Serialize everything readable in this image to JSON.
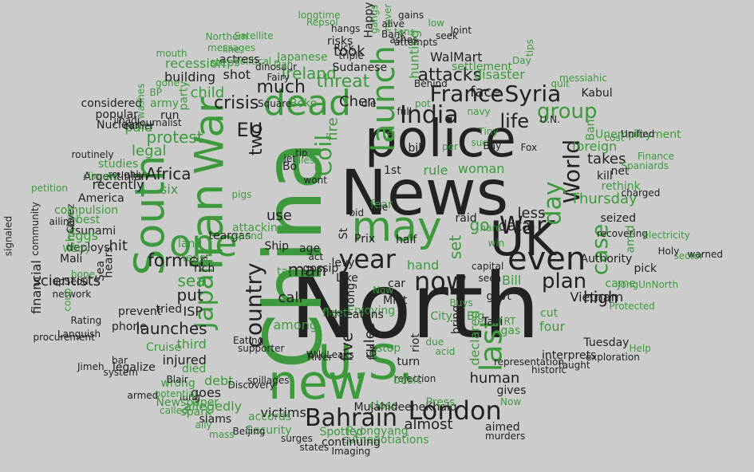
{
  "palette": {
    "background": "#cccccc",
    "dark": "#222222",
    "green": "#3c9a3c"
  },
  "words": [
    {
      "text": "North",
      "color": "dark"
    },
    {
      "text": "China",
      "color": "green"
    },
    {
      "text": "News",
      "color": "dark"
    },
    {
      "text": "police",
      "color": "dark"
    },
    {
      "text": "U.S.",
      "color": "green"
    },
    {
      "text": "new",
      "color": "green"
    },
    {
      "text": "UK",
      "color": "dark"
    },
    {
      "text": "Iran",
      "color": "green"
    },
    {
      "text": "War",
      "color": "green"
    },
    {
      "text": "South",
      "color": "green"
    },
    {
      "text": "one",
      "color": "green"
    },
    {
      "text": "may",
      "color": "green"
    },
    {
      "text": "dead",
      "color": "green"
    },
    {
      "text": "even",
      "color": "dark"
    },
    {
      "text": "London",
      "color": "dark"
    },
    {
      "text": "Bahrain",
      "color": "dark"
    },
    {
      "text": "now",
      "color": "dark"
    },
    {
      "text": "year",
      "color": "dark"
    },
    {
      "text": "launch",
      "color": "green"
    },
    {
      "text": "last",
      "color": "green"
    },
    {
      "text": "India",
      "color": "dark"
    },
    {
      "text": "France",
      "color": "dark"
    },
    {
      "text": "Syria",
      "color": "dark"
    },
    {
      "text": "World",
      "color": "dark"
    },
    {
      "text": "War",
      "color": "dark"
    },
    {
      "text": "Japan",
      "color": "green"
    },
    {
      "text": "country",
      "color": "dark"
    },
    {
      "text": "case",
      "color": "green"
    },
    {
      "text": "EU",
      "color": "dark"
    },
    {
      "text": "day",
      "color": "green"
    },
    {
      "text": "plan",
      "color": "dark"
    },
    {
      "text": "man",
      "color": "dark"
    },
    {
      "text": "Coil",
      "color": "green"
    },
    {
      "text": "group",
      "color": "green"
    },
    {
      "text": "life",
      "color": "dark"
    },
    {
      "text": "attacks",
      "color": "dark"
    },
    {
      "text": "threat",
      "color": "green"
    },
    {
      "text": "much",
      "color": "dark"
    },
    {
      "text": "two",
      "color": "dark"
    },
    {
      "text": "crisis",
      "color": "dark"
    },
    {
      "text": "protest",
      "color": "green"
    },
    {
      "text": "Africa",
      "color": "dark"
    },
    {
      "text": "legal",
      "color": "green"
    },
    {
      "text": "former",
      "color": "dark"
    },
    {
      "text": "sea",
      "color": "green"
    },
    {
      "text": "put",
      "color": "dark"
    },
    {
      "text": "launches",
      "color": "dark"
    },
    {
      "text": "high",
      "color": "dark"
    },
    {
      "text": "Thursday",
      "color": "green"
    },
    {
      "text": "less",
      "color": "dark"
    },
    {
      "text": "data",
      "color": "dark"
    },
    {
      "text": "go",
      "color": "green"
    },
    {
      "text": "set",
      "color": "green"
    },
    {
      "text": "takes",
      "color": "dark"
    },
    {
      "text": "five",
      "color": "dark"
    },
    {
      "text": "rules",
      "color": "dark"
    },
    {
      "text": "almost",
      "color": "dark"
    },
    {
      "text": "human",
      "color": "dark"
    },
    {
      "text": "scientists",
      "color": "dark"
    },
    {
      "text": "financial",
      "color": "dark"
    },
    {
      "text": "hit",
      "color": "dark"
    },
    {
      "text": "call",
      "color": "dark"
    },
    {
      "text": "use",
      "color": "dark"
    },
    {
      "text": "victims",
      "color": "dark"
    },
    {
      "text": "Ireland",
      "color": "green"
    },
    {
      "text": "took",
      "color": "dark"
    },
    {
      "text": "WalMart",
      "color": "dark"
    },
    {
      "text": "disaster",
      "color": "green"
    },
    {
      "text": "face",
      "color": "dark"
    },
    {
      "text": "Kabul",
      "color": "dark"
    },
    {
      "text": "Chen",
      "color": "dark"
    },
    {
      "text": "building",
      "color": "dark"
    },
    {
      "text": "recession",
      "color": "green"
    },
    {
      "text": "child",
      "color": "green"
    },
    {
      "text": "fire",
      "color": "green"
    },
    {
      "text": "hunting",
      "color": "green"
    },
    {
      "text": "woman",
      "color": "green"
    },
    {
      "text": "rule",
      "color": "green"
    },
    {
      "text": "1st",
      "color": "dark"
    },
    {
      "text": "recently",
      "color": "dark"
    },
    {
      "text": "six",
      "color": "green"
    },
    {
      "text": "ISP",
      "color": "dark"
    },
    {
      "text": "third",
      "color": "green"
    },
    {
      "text": "injured",
      "color": "dark"
    },
    {
      "text": "died",
      "color": "green"
    },
    {
      "text": "debt",
      "color": "green"
    },
    {
      "text": "goes",
      "color": "dark"
    },
    {
      "text": "allegedly",
      "color": "green"
    },
    {
      "text": "among",
      "color": "green"
    },
    {
      "text": "hand",
      "color": "green"
    },
    {
      "text": "Bill",
      "color": "green"
    },
    {
      "text": "declared",
      "color": "green"
    },
    {
      "text": "bring",
      "color": "dark"
    },
    {
      "text": "turn",
      "color": "dark"
    },
    {
      "text": "close",
      "color": "green"
    },
    {
      "text": "Vietnam",
      "color": "dark"
    },
    {
      "text": "seized",
      "color": "dark"
    },
    {
      "text": "Authority",
      "color": "dark"
    },
    {
      "text": "four",
      "color": "green"
    },
    {
      "text": "cut",
      "color": "green"
    },
    {
      "text": "gas",
      "color": "green"
    },
    {
      "text": "Cruise",
      "color": "green"
    },
    {
      "text": "rethink",
      "color": "green"
    },
    {
      "text": "Unemployment",
      "color": "green"
    },
    {
      "text": "amid",
      "color": "green"
    },
    {
      "text": "foreign",
      "color": "green"
    },
    {
      "text": "net",
      "color": "dark"
    },
    {
      "text": "came",
      "color": "green"
    },
    {
      "text": "Ship",
      "color": "dark"
    },
    {
      "text": "tax",
      "color": "green"
    },
    {
      "text": "far",
      "color": "dark"
    },
    {
      "text": "riot",
      "color": "dark"
    },
    {
      "text": "long",
      "color": "dark"
    },
    {
      "text": "car",
      "color": "dark"
    },
    {
      "text": "Prix",
      "color": "dark"
    },
    {
      "text": "St",
      "color": "dark"
    },
    {
      "text": "run",
      "color": "dark"
    },
    {
      "text": "army",
      "color": "green"
    },
    {
      "text": "paid",
      "color": "green"
    },
    {
      "text": "party",
      "color": "green"
    },
    {
      "text": "shot",
      "color": "dark"
    },
    {
      "text": "Japanese",
      "color": "green"
    },
    {
      "text": "Sudanese",
      "color": "dark"
    },
    {
      "text": "risks",
      "color": "dark"
    },
    {
      "text": "Bank",
      "color": "dark"
    },
    {
      "text": "attempts",
      "color": "dark"
    },
    {
      "text": "seek",
      "color": "dark"
    },
    {
      "text": "Joint",
      "color": "dark"
    },
    {
      "text": "settlement",
      "color": "green"
    },
    {
      "text": "ashes",
      "color": "dark"
    },
    {
      "text": "gangs",
      "color": "green"
    },
    {
      "text": "never",
      "color": "green"
    },
    {
      "text": "Northern",
      "color": "green"
    },
    {
      "text": "messages",
      "color": "green"
    },
    {
      "text": "Political",
      "color": "green"
    },
    {
      "text": "actress",
      "color": "dark"
    },
    {
      "text": "steps",
      "color": "green"
    },
    {
      "text": "Nuclear",
      "color": "dark"
    },
    {
      "text": "considered",
      "color": "dark"
    },
    {
      "text": "popular",
      "color": "dark"
    },
    {
      "text": "studies",
      "color": "green"
    },
    {
      "text": "America",
      "color": "dark"
    },
    {
      "text": "best",
      "color": "green"
    },
    {
      "text": "tsunami",
      "color": "dark"
    },
    {
      "text": "charge",
      "color": "green"
    },
    {
      "text": "eggs",
      "color": "green"
    },
    {
      "text": "deploys",
      "color": "dark"
    },
    {
      "text": "Mali",
      "color": "dark"
    },
    {
      "text": "hears",
      "color": "dark"
    },
    {
      "text": "Sea",
      "color": "dark"
    },
    {
      "text": "rich",
      "color": "dark"
    },
    {
      "text": "land",
      "color": "green"
    },
    {
      "text": "least",
      "color": "green"
    },
    {
      "text": "tried",
      "color": "dark"
    },
    {
      "text": "prevent",
      "color": "dark"
    },
    {
      "text": "phone",
      "color": "dark"
    },
    {
      "text": "legalize",
      "color": "dark"
    },
    {
      "text": "wrong",
      "color": "green"
    },
    {
      "text": "Newspaper",
      "color": "green"
    },
    {
      "text": "slams",
      "color": "dark"
    },
    {
      "text": "accords",
      "color": "green"
    },
    {
      "text": "Security",
      "color": "green"
    },
    {
      "text": "Spotted",
      "color": "green"
    },
    {
      "text": "Pyongyang",
      "color": "green"
    },
    {
      "text": "cutnegotiations",
      "color": "green"
    },
    {
      "text": "continuing",
      "color": "dark"
    },
    {
      "text": "Imaging",
      "color": "dark"
    },
    {
      "text": "states",
      "color": "dark"
    },
    {
      "text": "surges",
      "color": "dark"
    },
    {
      "text": "Beijing",
      "color": "dark"
    },
    {
      "text": "MujahideeneKhalq",
      "color": "dark"
    },
    {
      "text": "Press",
      "color": "green"
    },
    {
      "text": "aimed",
      "color": "dark"
    },
    {
      "text": "murders",
      "color": "dark"
    },
    {
      "text": "gives",
      "color": "dark"
    },
    {
      "text": "historic",
      "color": "dark"
    },
    {
      "text": "representation",
      "color": "dark"
    },
    {
      "text": "interprets",
      "color": "dark"
    },
    {
      "text": "taught",
      "color": "dark"
    },
    {
      "text": "Tuesday",
      "color": "dark"
    },
    {
      "text": "Help",
      "color": "green"
    },
    {
      "text": "exploration",
      "color": "dark"
    },
    {
      "text": "Protected",
      "color": "green"
    },
    {
      "text": "JongUnNorth",
      "color": "green"
    },
    {
      "text": "pick",
      "color": "dark"
    },
    {
      "text": "Holy",
      "color": "dark"
    },
    {
      "text": "sector",
      "color": "green"
    },
    {
      "text": "warned",
      "color": "dark"
    },
    {
      "text": "recovering",
      "color": "dark"
    },
    {
      "text": "electricity",
      "color": "green"
    },
    {
      "text": "charged",
      "color": "dark"
    },
    {
      "text": "Spaniards",
      "color": "green"
    },
    {
      "text": "Finance",
      "color": "green"
    },
    {
      "text": "Unified",
      "color": "dark"
    },
    {
      "text": "messiahic",
      "color": "green"
    },
    {
      "text": "quit",
      "color": "green"
    },
    {
      "text": "Day",
      "color": "green"
    },
    {
      "text": "tips",
      "color": "green"
    },
    {
      "text": "Ban",
      "color": "green"
    },
    {
      "text": "cost",
      "color": "green"
    },
    {
      "text": "kill",
      "color": "dark"
    },
    {
      "text": "Fox",
      "color": "dark"
    },
    {
      "text": "navy",
      "color": "green"
    },
    {
      "text": "Boko",
      "color": "green"
    },
    {
      "text": "Square",
      "color": "dark"
    },
    {
      "text": "Fairy",
      "color": "dark"
    },
    {
      "text": "dinosaur",
      "color": "dark"
    },
    {
      "text": "washes",
      "color": "green"
    },
    {
      "text": "jihadi",
      "color": "dark"
    },
    {
      "text": "journalist",
      "color": "dark"
    },
    {
      "text": "earlier",
      "color": "dark"
    },
    {
      "text": "routinely",
      "color": "dark"
    },
    {
      "text": "Argentinian",
      "color": "dark"
    },
    {
      "text": "roughly",
      "color": "dark"
    },
    {
      "text": "climate",
      "color": "green"
    },
    {
      "text": "petition",
      "color": "green"
    },
    {
      "text": "Chvez",
      "color": "dark"
    },
    {
      "text": "ailing",
      "color": "dark"
    },
    {
      "text": "community",
      "color": "dark"
    },
    {
      "text": "signaled",
      "color": "dark"
    },
    {
      "text": "compulsion",
      "color": "green"
    },
    {
      "text": "Watty",
      "color": "green"
    },
    {
      "text": "hope",
      "color": "green"
    },
    {
      "text": "upSeoul",
      "color": "dark"
    },
    {
      "text": "network",
      "color": "dark"
    },
    {
      "text": "coup",
      "color": "green"
    },
    {
      "text": "procurement",
      "color": "dark"
    },
    {
      "text": "Languish",
      "color": "dark"
    },
    {
      "text": "Rating",
      "color": "dark"
    },
    {
      "text": "Jimeh",
      "color": "dark"
    },
    {
      "text": "bar",
      "color": "dark"
    },
    {
      "text": "system",
      "color": "dark"
    },
    {
      "text": "armed",
      "color": "dark"
    },
    {
      "text": "called",
      "color": "green"
    },
    {
      "text": "ally",
      "color": "green"
    },
    {
      "text": "mass",
      "color": "green"
    },
    {
      "text": "supporter",
      "color": "dark"
    },
    {
      "text": "spillages",
      "color": "dark"
    },
    {
      "text": "Discovery",
      "color": "dark"
    },
    {
      "text": "Eating",
      "color": "dark"
    },
    {
      "text": "teargas",
      "color": "dark"
    },
    {
      "text": "spend",
      "color": "green"
    },
    {
      "text": "attacking",
      "color": "green"
    },
    {
      "text": "longtime",
      "color": "green"
    },
    {
      "text": "Repsol",
      "color": "green"
    },
    {
      "text": "hangs",
      "color": "dark"
    },
    {
      "text": "alive",
      "color": "dark"
    },
    {
      "text": "tens",
      "color": "green"
    },
    {
      "text": "low",
      "color": "green"
    },
    {
      "text": "gains",
      "color": "dark"
    },
    {
      "text": "Satellite",
      "color": "green"
    },
    {
      "text": "line",
      "color": "green"
    },
    {
      "text": "mouth",
      "color": "green"
    },
    {
      "text": "Dan",
      "color": "green"
    },
    {
      "text": "gone",
      "color": "green"
    },
    {
      "text": "BP",
      "color": "green"
    },
    {
      "text": "pot",
      "color": "green"
    },
    {
      "text": "Behind",
      "color": "dark"
    },
    {
      "text": "Happy",
      "color": "dark"
    },
    {
      "text": "Rick",
      "color": "dark"
    },
    {
      "text": "triple",
      "color": "dark"
    },
    {
      "text": "die",
      "color": "dark"
    },
    {
      "text": "full",
      "color": "dark"
    },
    {
      "text": "bill",
      "color": "dark"
    },
    {
      "text": "per",
      "color": "green"
    },
    {
      "text": "sue",
      "color": "green"
    },
    {
      "text": "Bay",
      "color": "dark"
    },
    {
      "text": "Tiny",
      "color": "green"
    },
    {
      "text": "U.N.",
      "color": "dark"
    },
    {
      "text": "El",
      "color": "green"
    },
    {
      "text": "fear",
      "color": "green"
    },
    {
      "text": "tip",
      "color": "dark"
    },
    {
      "text": "Bo",
      "color": "dark"
    },
    {
      "text": "jet",
      "color": "dark"
    },
    {
      "text": "dies",
      "color": "green"
    },
    {
      "text": "wont",
      "color": "dark"
    },
    {
      "text": "pigs",
      "color": "green"
    },
    {
      "text": "age",
      "color": "dark"
    },
    {
      "text": "act",
      "color": "dark"
    },
    {
      "text": "gossip",
      "color": "dark"
    },
    {
      "text": "levy",
      "color": "dark"
    },
    {
      "text": "role",
      "color": "dark"
    },
    {
      "text": "bid",
      "color": "dark"
    },
    {
      "text": "half",
      "color": "dark"
    },
    {
      "text": "raid",
      "color": "dark"
    },
    {
      "text": "hard",
      "color": "green"
    },
    {
      "text": "win",
      "color": "green"
    },
    {
      "text": "capital",
      "color": "dark"
    },
    {
      "text": "seen",
      "color": "dark"
    },
    {
      "text": "govt",
      "color": "dark"
    },
    {
      "text": "RT",
      "color": "green"
    },
    {
      "text": "Big",
      "color": "green"
    },
    {
      "text": "Taiji",
      "color": "dark"
    },
    {
      "text": "Buys",
      "color": "green"
    },
    {
      "text": "Now",
      "color": "green"
    },
    {
      "text": "Like",
      "color": "dark"
    },
    {
      "text": "Enjoying",
      "color": "green"
    },
    {
      "text": "fleet",
      "color": "green"
    },
    {
      "text": "threatens",
      "color": "dark"
    },
    {
      "text": "Mint",
      "color": "dark"
    },
    {
      "text": "City",
      "color": "green"
    },
    {
      "text": "due",
      "color": "green"
    },
    {
      "text": "stop",
      "color": "green"
    },
    {
      "text": "acid",
      "color": "green"
    },
    {
      "text": "River",
      "color": "dark"
    },
    {
      "text": "WikiLeaks",
      "color": "dark"
    },
    {
      "text": "rejection",
      "color": "dark"
    },
    {
      "text": "basic",
      "color": "green"
    },
    {
      "text": "spark",
      "color": "green"
    },
    {
      "text": "lung",
      "color": "dark"
    },
    {
      "text": "potential",
      "color": "green"
    },
    {
      "text": "Blair",
      "color": "dark"
    },
    {
      "text": "Now",
      "color": "green"
    }
  ]
}
